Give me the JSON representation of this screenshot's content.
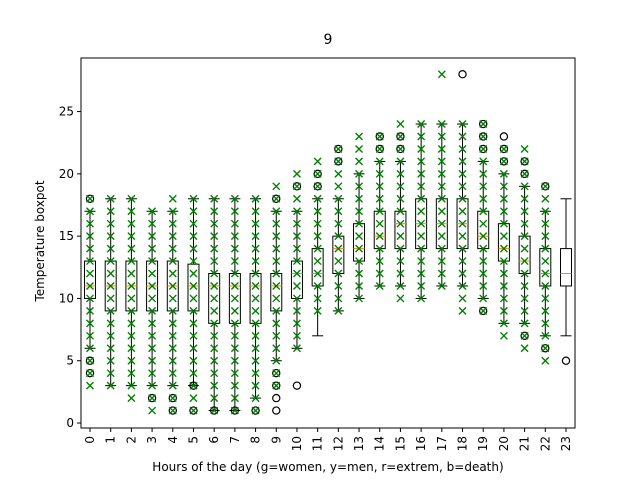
{
  "chart_data": {
    "type": "box",
    "title": "9",
    "x_label": "Hours of the day (g=women, y=men, r=extrem, b=death)",
    "y_label": "Temperature boxpot",
    "categories": [
      "0",
      "1",
      "2",
      "3",
      "4",
      "5",
      "6",
      "7",
      "8",
      "9",
      "10",
      "11",
      "12",
      "13",
      "14",
      "15",
      "16",
      "17",
      "18",
      "19",
      "20",
      "21",
      "22",
      "23"
    ],
    "ylim": [
      -0.4,
      29.3
    ],
    "yticks": [
      0,
      5,
      10,
      15,
      20,
      25
    ],
    "box_color": "#000000",
    "median_color": "#ff7f0e",
    "point_color": "#008000",
    "boxes": [
      {
        "whislo": 6,
        "q1": 10,
        "med": 11,
        "q3": 13,
        "whishi": 17,
        "fliers": [
          18,
          5,
          4
        ]
      },
      {
        "whislo": 3,
        "q1": 9,
        "med": 11,
        "q3": 13,
        "whishi": 18,
        "fliers": []
      },
      {
        "whislo": 3,
        "q1": 9,
        "med": 11,
        "q3": 13,
        "whishi": 18,
        "fliers": []
      },
      {
        "whislo": 3,
        "q1": 9,
        "med": 11,
        "q3": 13,
        "whishi": 17,
        "fliers": [
          2
        ]
      },
      {
        "whislo": 3,
        "q1": 9,
        "med": 11,
        "q3": 13,
        "whishi": 17,
        "fliers": [
          2,
          1
        ]
      },
      {
        "whislo": 3,
        "q1": 9,
        "med": 11,
        "q3": 12.75,
        "whishi": 18,
        "fliers": [
          3,
          1
        ]
      },
      {
        "whislo": 1,
        "q1": 8,
        "med": 11,
        "q3": 12,
        "whishi": 18,
        "fliers": [
          1
        ]
      },
      {
        "whislo": 1,
        "q1": 8,
        "med": 11,
        "q3": 12,
        "whishi": 18,
        "fliers": [
          1
        ]
      },
      {
        "whislo": 2,
        "q1": 8,
        "med": 11,
        "q3": 12,
        "whishi": 18,
        "fliers": [
          1
        ]
      },
      {
        "whislo": 5,
        "q1": 9,
        "med": 11,
        "q3": 12,
        "whishi": 17,
        "fliers": [
          18,
          4,
          3,
          2,
          1
        ]
      },
      {
        "whislo": 6,
        "q1": 10,
        "med": 12,
        "q3": 13,
        "whishi": 17,
        "fliers": [
          19,
          3
        ]
      },
      {
        "whislo": 7,
        "q1": 11,
        "med": 12,
        "q3": 14,
        "whishi": 18,
        "fliers": [
          20,
          19
        ]
      },
      {
        "whislo": 9,
        "q1": 12,
        "med": 14,
        "q3": 15,
        "whishi": 18,
        "fliers": [
          21,
          22
        ]
      },
      {
        "whislo": 10,
        "q1": 13,
        "med": 14,
        "q3": 16,
        "whishi": 20,
        "fliers": []
      },
      {
        "whislo": 11,
        "q1": 14,
        "med": 15,
        "q3": 17,
        "whishi": 21,
        "fliers": [
          23,
          22
        ]
      },
      {
        "whislo": 11,
        "q1": 14,
        "med": 16,
        "q3": 17,
        "whishi": 21,
        "fliers": [
          23,
          22
        ]
      },
      {
        "whislo": 10,
        "q1": 14,
        "med": 16,
        "q3": 18,
        "whishi": 24,
        "fliers": []
      },
      {
        "whislo": 11,
        "q1": 14,
        "med": 16,
        "q3": 18,
        "whishi": 24,
        "fliers": []
      },
      {
        "whislo": 11,
        "q1": 14,
        "med": 16,
        "q3": 18,
        "whishi": 24,
        "fliers": [
          28
        ]
      },
      {
        "whislo": 10,
        "q1": 14,
        "med": 15,
        "q3": 17,
        "whishi": 21,
        "fliers": [
          24,
          23,
          22,
          9
        ]
      },
      {
        "whislo": 8,
        "q1": 13,
        "med": 14,
        "q3": 16,
        "whishi": 20,
        "fliers": [
          23,
          22,
          21
        ]
      },
      {
        "whislo": 8,
        "q1": 12,
        "med": 13,
        "q3": 15,
        "whishi": 19,
        "fliers": [
          21,
          20,
          7
        ]
      },
      {
        "whislo": 7,
        "q1": 11,
        "med": 12,
        "q3": 14,
        "whishi": 17,
        "fliers": [
          19,
          6
        ]
      },
      {
        "whislo": 7,
        "q1": 11,
        "med": 12,
        "q3": 14,
        "whishi": 18,
        "fliers": [
          5
        ]
      }
    ],
    "points": [
      [
        3,
        4,
        5,
        6,
        7,
        8,
        9,
        10,
        11,
        12,
        13,
        14,
        15,
        16,
        17,
        18
      ],
      [
        3,
        4,
        5,
        6,
        7,
        8,
        9,
        10,
        11,
        12,
        13,
        14,
        15,
        16,
        17,
        18
      ],
      [
        2,
        3,
        4,
        5,
        6,
        7,
        8,
        9,
        10,
        11,
        12,
        13,
        14,
        15,
        16,
        17,
        18
      ],
      [
        1,
        2,
        3,
        4,
        5,
        6,
        7,
        8,
        9,
        10,
        11,
        12,
        13,
        14,
        15,
        16,
        17
      ],
      [
        1,
        2,
        3,
        4,
        5,
        6,
        7,
        8,
        9,
        10,
        11,
        12,
        13,
        14,
        15,
        16,
        17,
        18
      ],
      [
        1,
        2,
        3,
        4,
        5,
        6,
        7,
        8,
        9,
        10,
        11,
        12,
        13,
        14,
        15,
        16,
        17,
        18
      ],
      [
        1,
        2,
        3,
        4,
        5,
        6,
        7,
        8,
        9,
        10,
        11,
        12,
        13,
        14,
        15,
        16,
        17,
        18
      ],
      [
        1,
        2,
        3,
        4,
        5,
        6,
        7,
        8,
        9,
        10,
        11,
        12,
        13,
        14,
        15,
        16,
        17,
        18
      ],
      [
        1,
        2,
        3,
        4,
        5,
        6,
        7,
        8,
        9,
        10,
        11,
        12,
        13,
        14,
        15,
        16,
        17,
        18
      ],
      [
        3,
        4,
        5,
        6,
        7,
        8,
        9,
        10,
        11,
        12,
        13,
        14,
        15,
        16,
        17,
        18,
        19
      ],
      [
        6,
        7,
        8,
        9,
        10,
        11,
        12,
        13,
        14,
        15,
        16,
        17,
        18,
        19,
        20
      ],
      [
        9,
        10,
        11,
        12,
        13,
        14,
        15,
        16,
        17,
        18,
        19,
        20,
        21
      ],
      [
        9,
        10,
        11,
        12,
        13,
        14,
        15,
        16,
        17,
        18,
        19,
        20,
        21,
        22
      ],
      [
        10,
        11,
        12,
        13,
        14,
        15,
        16,
        17,
        18,
        19,
        20,
        21,
        22,
        23
      ],
      [
        11,
        12,
        13,
        14,
        15,
        16,
        17,
        18,
        19,
        20,
        21,
        22,
        23
      ],
      [
        10,
        11,
        12,
        13,
        14,
        15,
        16,
        17,
        18,
        19,
        20,
        21,
        22,
        23,
        24
      ],
      [
        10,
        11,
        12,
        13,
        14,
        15,
        16,
        17,
        18,
        19,
        20,
        21,
        22,
        23,
        24
      ],
      [
        11,
        12,
        13,
        14,
        15,
        16,
        17,
        18,
        19,
        20,
        21,
        22,
        23,
        24,
        28
      ],
      [
        9,
        10,
        11,
        12,
        13,
        14,
        15,
        16,
        17,
        18,
        19,
        20,
        21,
        22,
        23,
        24
      ],
      [
        9,
        10,
        11,
        12,
        13,
        14,
        15,
        16,
        17,
        18,
        19,
        20,
        21,
        22,
        23,
        24
      ],
      [
        7,
        8,
        9,
        10,
        11,
        12,
        13,
        14,
        15,
        16,
        17,
        18,
        19,
        20,
        21,
        22
      ],
      [
        6,
        7,
        8,
        9,
        10,
        11,
        12,
        13,
        14,
        15,
        16,
        17,
        18,
        19,
        20,
        21,
        22
      ],
      [
        5,
        6,
        7,
        8,
        9,
        10,
        11,
        12,
        13,
        14,
        15,
        16,
        17,
        18,
        19
      ],
      []
    ]
  }
}
